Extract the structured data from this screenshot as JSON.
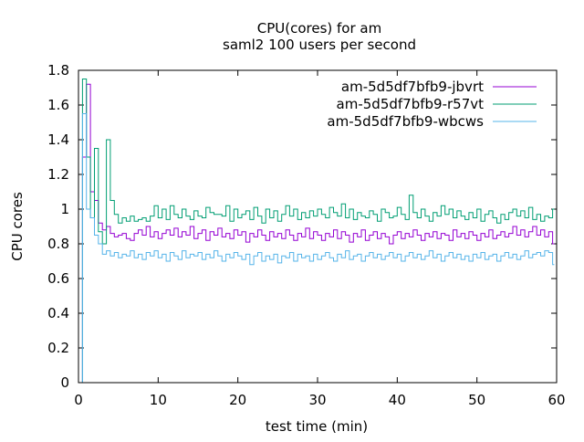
{
  "chart_data": {
    "type": "line",
    "title": "CPU(cores) for am",
    "subtitle": "saml2 100 users per second",
    "xlabel": "test time (min)",
    "ylabel": "CPU cores",
    "xlim": [
      0,
      60
    ],
    "ylim": [
      0,
      1.8
    ],
    "x_step": 0.5,
    "xticks": [
      "0",
      "10",
      "20",
      "30",
      "40",
      "50",
      "60"
    ],
    "yticks": [
      "0",
      "0.2",
      "0.4",
      "0.6",
      "0.8",
      "1",
      "1.2",
      "1.4",
      "1.6",
      "1.8"
    ],
    "legend_position": "top-right",
    "series": [
      {
        "name": "am-5d5df7bfb9-jbvrt",
        "color": "#9400d3",
        "values": [
          0,
          1.3,
          1.72,
          1.1,
          1.05,
          0.92,
          0.88,
          0.9,
          0.86,
          0.84,
          0.85,
          0.86,
          0.83,
          0.82,
          0.86,
          0.88,
          0.85,
          0.9,
          0.84,
          0.87,
          0.83,
          0.86,
          0.88,
          0.85,
          0.89,
          0.84,
          0.87,
          0.85,
          0.9,
          0.83,
          0.86,
          0.88,
          0.82,
          0.87,
          0.85,
          0.89,
          0.84,
          0.86,
          0.83,
          0.88,
          0.85,
          0.87,
          0.81,
          0.86,
          0.84,
          0.88,
          0.85,
          0.82,
          0.87,
          0.84,
          0.86,
          0.83,
          0.88,
          0.85,
          0.82,
          0.86,
          0.84,
          0.89,
          0.83,
          0.87,
          0.85,
          0.82,
          0.86,
          0.84,
          0.88,
          0.83,
          0.87,
          0.85,
          0.81,
          0.86,
          0.84,
          0.88,
          0.82,
          0.85,
          0.87,
          0.83,
          0.86,
          0.84,
          0.8,
          0.85,
          0.87,
          0.83,
          0.86,
          0.84,
          0.88,
          0.85,
          0.82,
          0.86,
          0.84,
          0.87,
          0.83,
          0.86,
          0.85,
          0.82,
          0.88,
          0.84,
          0.86,
          0.83,
          0.87,
          0.85,
          0.82,
          0.86,
          0.84,
          0.88,
          0.83,
          0.85,
          0.87,
          0.84,
          0.86,
          0.9,
          0.85,
          0.88,
          0.84,
          0.87,
          0.9,
          0.85,
          0.88,
          0.84,
          0.87,
          0.8
        ]
      },
      {
        "name": "am-5d5df7bfb9-r57vt",
        "color": "#009e73",
        "values": [
          0,
          1.75,
          1.3,
          0.95,
          1.35,
          0.87,
          0.8,
          1.4,
          1.05,
          0.97,
          0.92,
          0.95,
          0.93,
          0.96,
          0.93,
          0.94,
          0.95,
          0.93,
          0.96,
          1.02,
          0.95,
          1.0,
          0.94,
          1.02,
          0.97,
          0.95,
          1.0,
          0.96,
          0.94,
          0.99,
          0.96,
          0.95,
          1.01,
          0.98,
          0.97,
          0.97,
          0.96,
          1.02,
          0.93,
          1.0,
          0.95,
          0.97,
          0.99,
          0.94,
          1.01,
          0.96,
          0.92,
          1.0,
          0.95,
          0.99,
          0.93,
          0.97,
          1.02,
          0.96,
          1.0,
          0.94,
          0.98,
          0.95,
          0.99,
          0.96,
          1.0,
          0.97,
          0.95,
          1.01,
          0.98,
          0.96,
          1.03,
          0.95,
          1.0,
          0.94,
          0.98,
          0.96,
          0.95,
          0.99,
          0.97,
          0.93,
          1.0,
          0.98,
          0.95,
          0.96,
          1.01,
          0.97,
          0.94,
          1.08,
          0.98,
          0.95,
          1.0,
          0.96,
          0.93,
          0.98,
          0.96,
          1.02,
          0.97,
          1.0,
          0.95,
          0.99,
          0.96,
          0.94,
          0.98,
          0.95,
          1.0,
          0.93,
          0.97,
          0.99,
          0.95,
          0.92,
          0.97,
          0.94,
          0.98,
          1.0,
          0.96,
          0.99,
          0.95,
          1.01,
          0.94,
          0.97,
          0.93,
          0.96,
          0.95,
          1.0
        ]
      },
      {
        "name": "am-5d5df7bfb9-wbcws",
        "color": "#56b4e9",
        "values": [
          0,
          1.55,
          1.0,
          0.95,
          0.85,
          0.8,
          0.74,
          0.76,
          0.73,
          0.75,
          0.72,
          0.74,
          0.73,
          0.76,
          0.72,
          0.74,
          0.71,
          0.75,
          0.73,
          0.76,
          0.72,
          0.74,
          0.7,
          0.75,
          0.73,
          0.71,
          0.76,
          0.72,
          0.74,
          0.73,
          0.75,
          0.71,
          0.74,
          0.72,
          0.76,
          0.73,
          0.7,
          0.74,
          0.72,
          0.75,
          0.73,
          0.71,
          0.74,
          0.68,
          0.73,
          0.75,
          0.7,
          0.73,
          0.71,
          0.74,
          0.69,
          0.73,
          0.72,
          0.75,
          0.7,
          0.74,
          0.72,
          0.73,
          0.7,
          0.74,
          0.71,
          0.73,
          0.75,
          0.72,
          0.7,
          0.74,
          0.72,
          0.76,
          0.71,
          0.73,
          0.74,
          0.7,
          0.73,
          0.75,
          0.72,
          0.74,
          0.71,
          0.73,
          0.75,
          0.72,
          0.74,
          0.7,
          0.73,
          0.75,
          0.72,
          0.74,
          0.71,
          0.73,
          0.76,
          0.72,
          0.74,
          0.7,
          0.73,
          0.75,
          0.72,
          0.74,
          0.71,
          0.73,
          0.7,
          0.74,
          0.72,
          0.75,
          0.71,
          0.73,
          0.74,
          0.7,
          0.73,
          0.75,
          0.72,
          0.74,
          0.71,
          0.73,
          0.76,
          0.72,
          0.74,
          0.75,
          0.73,
          0.76,
          0.75,
          0.68
        ]
      }
    ]
  }
}
